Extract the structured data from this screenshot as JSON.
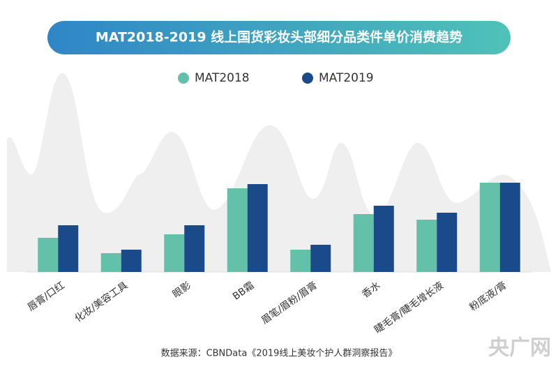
{
  "chart_data": {
    "type": "bar",
    "title": "MAT2018-2019 线上国货彩妆头部细分品类件单价消费趋势",
    "categories": [
      "唇膏/口红",
      "化妆/美容工具",
      "眼影",
      "BB霜",
      "眉笔/眉粉/眉膏",
      "香水",
      "睫毛膏/睫毛增长液",
      "粉底液/膏"
    ],
    "series": [
      {
        "name": "MAT2018",
        "color": "#63c1aa",
        "values": [
          49,
          27,
          54,
          120,
          32,
          83,
          75,
          128
        ]
      },
      {
        "name": "MAT2019",
        "color": "#1b4a8a",
        "values": [
          67,
          32,
          67,
          126,
          39,
          95,
          85,
          128
        ]
      }
    ],
    "ylim": [
      0,
      150
    ],
    "source": "数据来源：CBNData《2019线上美妆个护人群洞察报告》",
    "watermark": "央广网"
  }
}
